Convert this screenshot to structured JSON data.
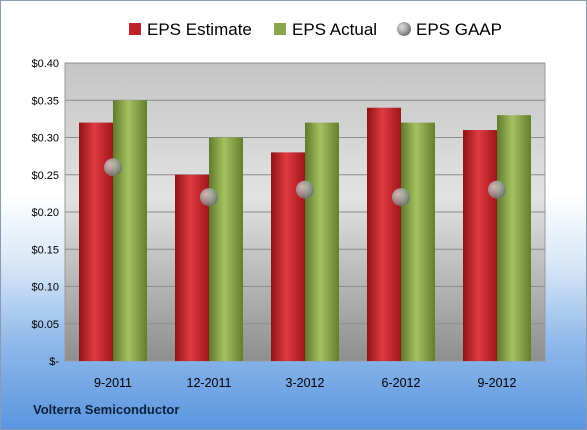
{
  "company": "Volterra Semiconductor",
  "chart_data": {
    "type": "bar",
    "categories": [
      "9-2011",
      "12-2011",
      "3-2012",
      "6-2012",
      "9-2012"
    ],
    "series": [
      {
        "name": "EPS Estimate",
        "kind": "bar",
        "color": "#c0242b",
        "values": [
          0.32,
          0.25,
          0.28,
          0.34,
          0.31
        ]
      },
      {
        "name": "EPS Actual",
        "kind": "bar",
        "color": "#8aa64b",
        "values": [
          0.35,
          0.3,
          0.32,
          0.32,
          0.33
        ]
      },
      {
        "name": "EPS GAAP",
        "kind": "marker",
        "color": "#a9a9a9",
        "values": [
          0.26,
          0.22,
          0.23,
          0.22,
          0.23
        ]
      }
    ],
    "ylim": [
      0,
      0.4
    ],
    "yticks": [
      0,
      0.05,
      0.1,
      0.15,
      0.2,
      0.25,
      0.3,
      0.35,
      0.4
    ],
    "ytick_labels": [
      "$-",
      "$0.05",
      "$0.10",
      "$0.15",
      "$0.20",
      "$0.25",
      "$0.30",
      "$0.35",
      "$0.40"
    ],
    "legend_position": "top",
    "grid": true
  }
}
